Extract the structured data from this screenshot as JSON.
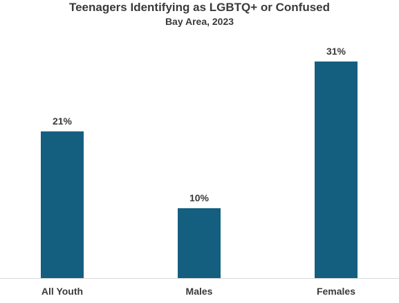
{
  "chart_data": {
    "type": "bar",
    "title": "Teenagers Identifying as LGBTQ+ or Confused",
    "subtitle": "Bay Area, 2023",
    "categories": [
      "All Youth",
      "Males",
      "Females"
    ],
    "values": [
      21,
      10,
      31
    ],
    "data_labels": [
      "21%",
      "10%",
      "31%"
    ],
    "xlabel": "",
    "ylabel": "",
    "ylim": [
      0,
      40
    ],
    "grid": false,
    "legend": "none",
    "bar_color": "#145f80",
    "axis_color": "#d9d9d9",
    "text_color": "#3a3a3a"
  }
}
